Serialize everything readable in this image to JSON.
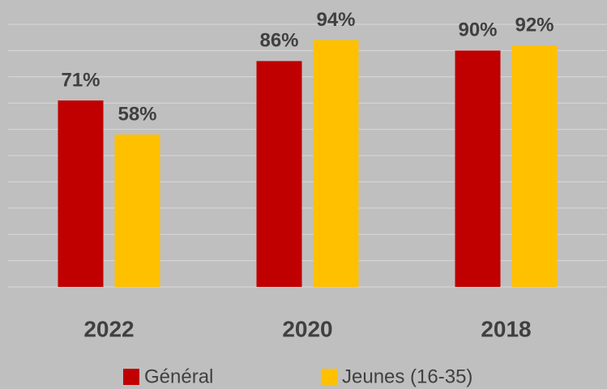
{
  "chart_data": {
    "type": "bar",
    "categories": [
      "2022",
      "2020",
      "2018"
    ],
    "series": [
      {
        "name": "Général",
        "color": "#c00000",
        "values": [
          71,
          86,
          90
        ],
        "value_labels": [
          "71%",
          "86%",
          "90%"
        ]
      },
      {
        "name": "Jeunes (16-35)",
        "color": "#ffc000",
        "values": [
          58,
          94,
          92
        ],
        "value_labels": [
          "58%",
          "94%",
          "92%"
        ]
      }
    ],
    "ylim": [
      0,
      100
    ],
    "yticks": [
      0,
      10,
      20,
      30,
      40,
      50,
      60,
      70,
      80,
      90,
      100
    ],
    "grid": true,
    "legend": "bottom"
  }
}
